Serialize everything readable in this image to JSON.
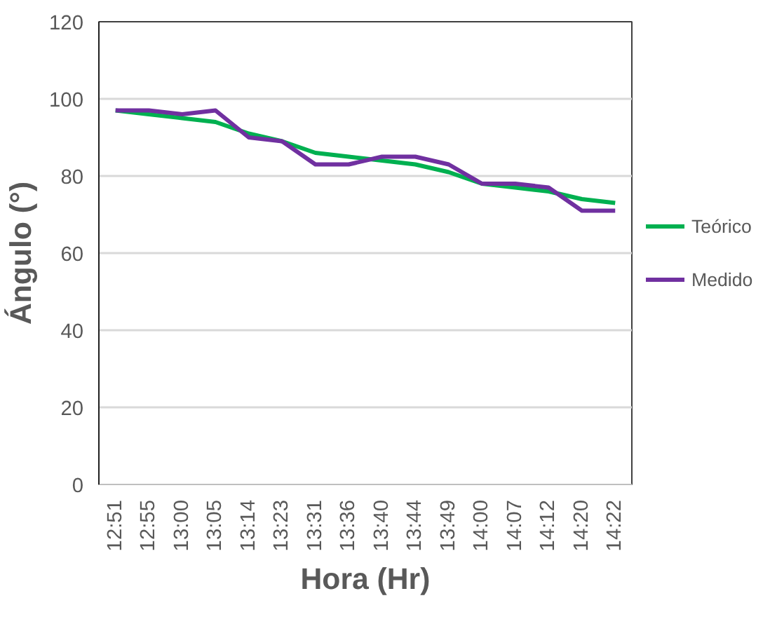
{
  "chart_data": {
    "type": "line",
    "xlabel": "Hora (Hr)",
    "ylabel": "Ángulo (°)",
    "categories": [
      "12:51",
      "12:55",
      "13:00",
      "13:05",
      "13:14",
      "13:23",
      "13:31",
      "13:36",
      "13:40",
      "13:44",
      "13:49",
      "14:00",
      "14:07",
      "14:12",
      "14:20",
      "14:22"
    ],
    "series": [
      {
        "name": "Teórico",
        "color": "#00b050",
        "values": [
          97,
          96,
          95,
          94,
          91,
          89,
          86,
          85,
          84,
          83,
          81,
          78,
          77,
          76,
          74,
          73
        ]
      },
      {
        "name": "Medido",
        "color": "#7030a0",
        "values": [
          97,
          97,
          96,
          97,
          90,
          89,
          83,
          83,
          85,
          85,
          83,
          78,
          78,
          77,
          71,
          71
        ]
      }
    ],
    "ylim": [
      0,
      120
    ],
    "yticks": [
      0,
      20,
      40,
      60,
      80,
      100,
      120
    ],
    "grid": "y",
    "legend": "right",
    "line_style": "solid",
    "marker": "none"
  }
}
